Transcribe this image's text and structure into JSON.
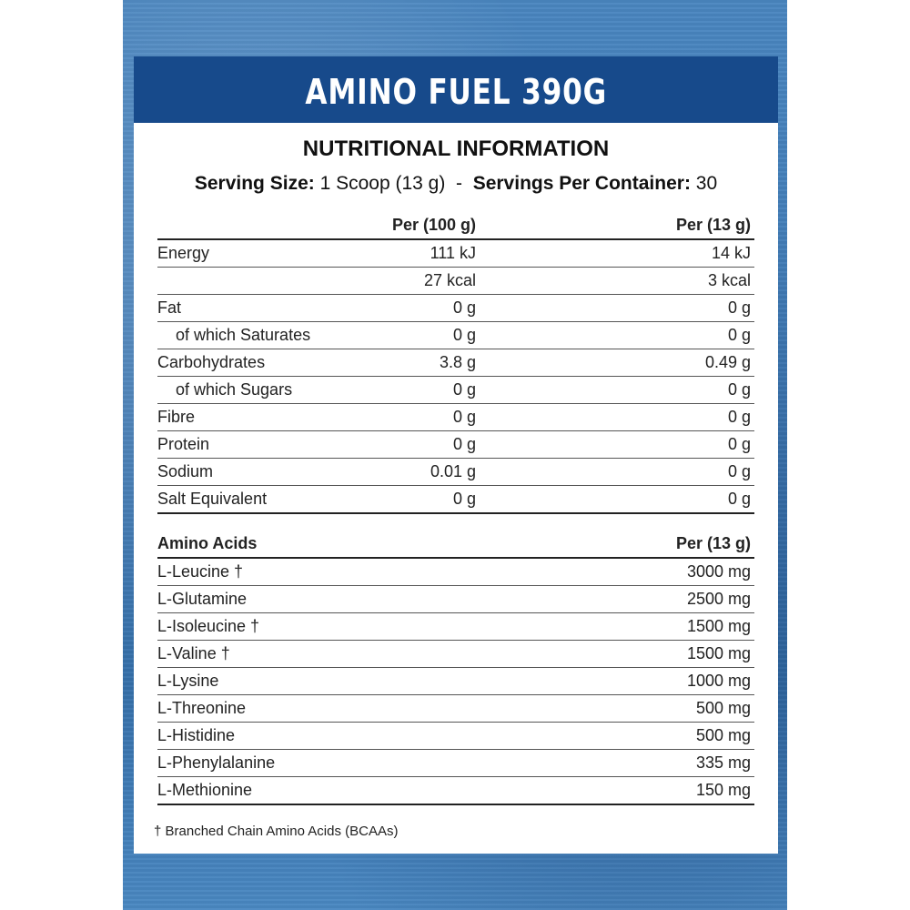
{
  "title": "AMINO FUEL 390G",
  "heading": "NUTRITIONAL INFORMATION",
  "serving": {
    "size_label": "Serving Size:",
    "size_value": "1 Scoop (13 g)",
    "separator": "-",
    "servings_label": "Servings Per Container:",
    "servings_value": "30"
  },
  "nutrition": {
    "col_per100": "Per (100 g)",
    "col_perserving": "Per  (13 g)",
    "rows": [
      {
        "label": "Energy",
        "per100": "111 kJ",
        "serving": "14 kJ",
        "indent": false
      },
      {
        "label": "",
        "per100": "27 kcal",
        "serving": "3 kcal",
        "indent": false
      },
      {
        "label": "Fat",
        "per100": "0 g",
        "serving": "0 g",
        "indent": false
      },
      {
        "label": "of which Saturates",
        "per100": "0 g",
        "serving": "0 g",
        "indent": true
      },
      {
        "label": "Carbohydrates",
        "per100": "3.8 g",
        "serving": "0.49 g",
        "indent": false
      },
      {
        "label": "of which Sugars",
        "per100": "0 g",
        "serving": "0 g",
        "indent": true
      },
      {
        "label": "Fibre",
        "per100": "0 g",
        "serving": "0 g",
        "indent": false
      },
      {
        "label": "Protein",
        "per100": "0 g",
        "serving": "0 g",
        "indent": false
      },
      {
        "label": "Sodium",
        "per100": "0.01 g",
        "serving": "0 g",
        "indent": false
      },
      {
        "label": "Salt Equivalent",
        "per100": "0 g",
        "serving": "0 g",
        "indent": false
      }
    ]
  },
  "amino": {
    "col_label": "Amino Acids",
    "col_perserving": "Per  (13 g)",
    "rows": [
      {
        "label": "L-Leucine †",
        "serving": "3000 mg"
      },
      {
        "label": "L-Glutamine",
        "serving": "2500 mg"
      },
      {
        "label": "L-Isoleucine †",
        "serving": "1500 mg"
      },
      {
        "label": "L-Valine †",
        "serving": "1500 mg"
      },
      {
        "label": "L-Lysine",
        "serving": "1000 mg"
      },
      {
        "label": "L-Threonine",
        "serving": "500 mg"
      },
      {
        "label": "L-Histidine",
        "serving": "500 mg"
      },
      {
        "label": "L-Phenylalanine",
        "serving": "335 mg"
      },
      {
        "label": "L-Methionine",
        "serving": "150 mg"
      }
    ]
  },
  "footnote": "† Branched Chain Amino Acids (BCAAs)",
  "colors": {
    "banner": "#174a8b",
    "background": "#3f79b3"
  }
}
